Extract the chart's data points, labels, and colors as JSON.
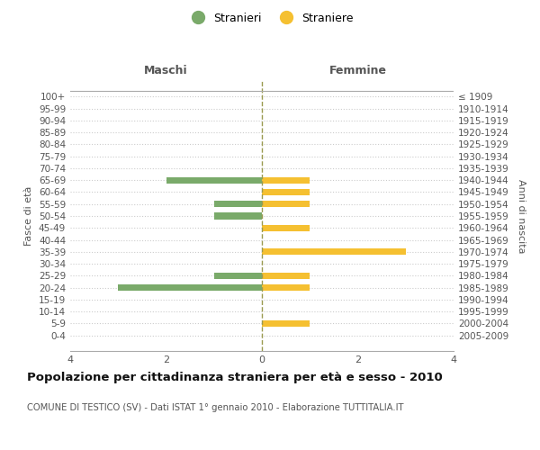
{
  "age_groups": [
    "0-4",
    "5-9",
    "10-14",
    "15-19",
    "20-24",
    "25-29",
    "30-34",
    "35-39",
    "40-44",
    "45-49",
    "50-54",
    "55-59",
    "60-64",
    "65-69",
    "70-74",
    "75-79",
    "80-84",
    "85-89",
    "90-94",
    "95-99",
    "100+"
  ],
  "birth_years": [
    "2005-2009",
    "2000-2004",
    "1995-1999",
    "1990-1994",
    "1985-1989",
    "1980-1984",
    "1975-1979",
    "1970-1974",
    "1965-1969",
    "1960-1964",
    "1955-1959",
    "1950-1954",
    "1945-1949",
    "1940-1944",
    "1935-1939",
    "1930-1934",
    "1925-1929",
    "1920-1924",
    "1915-1919",
    "1910-1914",
    "≤ 1909"
  ],
  "males": [
    0,
    0,
    0,
    0,
    3,
    1,
    0,
    0,
    0,
    0,
    1,
    1,
    0,
    2,
    0,
    0,
    0,
    0,
    0,
    0,
    0
  ],
  "females": [
    0,
    1,
    0,
    0,
    1,
    1,
    0,
    3,
    0,
    1,
    0,
    1,
    1,
    1,
    0,
    0,
    0,
    0,
    0,
    0,
    0
  ],
  "male_color": "#7aaa6a",
  "female_color": "#f5c031",
  "title": "Popolazione per cittadinanza straniera per età e sesso - 2010",
  "subtitle": "COMUNE DI TESTICO (SV) - Dati ISTAT 1° gennaio 2010 - Elaborazione TUTTITALIA.IT",
  "xlabel_left": "Maschi",
  "xlabel_right": "Femmine",
  "ylabel_left": "Fasce di età",
  "ylabel_right": "Anni di nascita",
  "legend_male": "Stranieri",
  "legend_female": "Straniere",
  "xlim": 4,
  "background_color": "#ffffff",
  "grid_color": "#cccccc",
  "centerline_color": "#9a9a50"
}
